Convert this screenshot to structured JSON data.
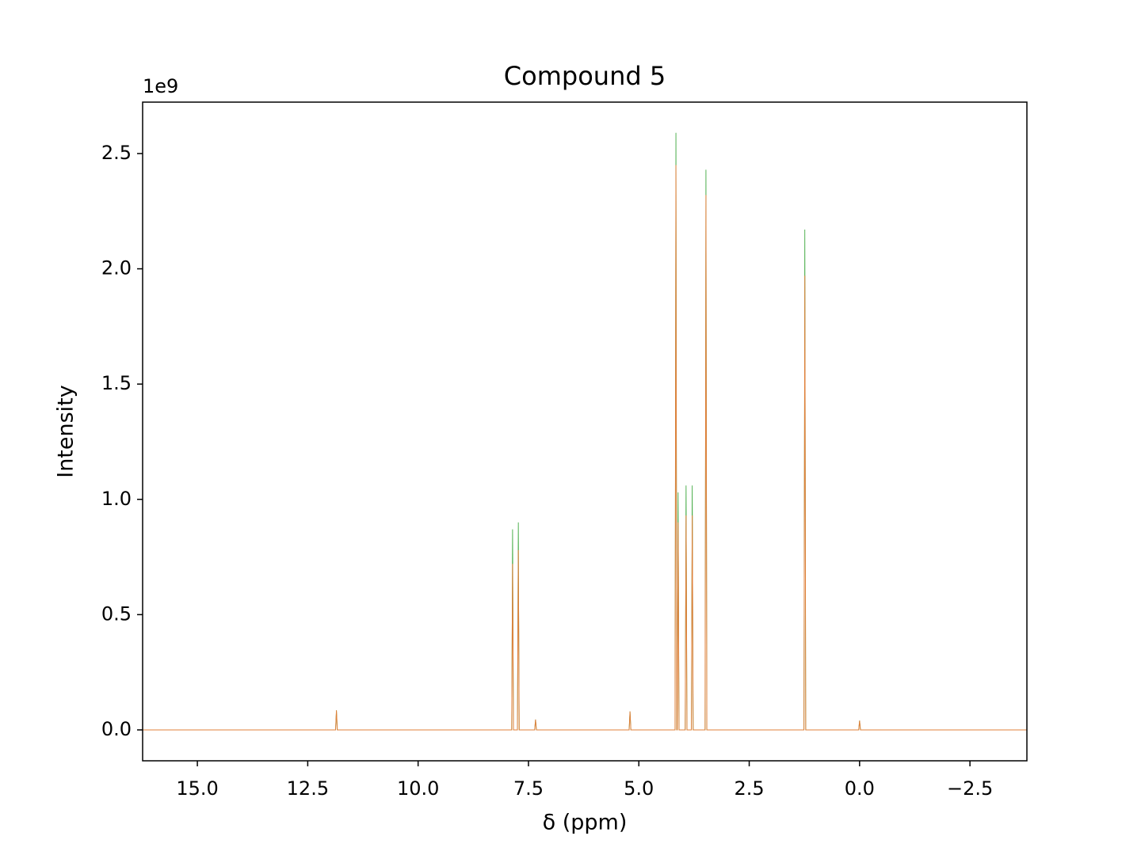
{
  "chart_data": {
    "type": "line",
    "title": "Compound 5",
    "xlabel": "δ (ppm)",
    "ylabel": "Intensity",
    "y_offset_label": "1e9",
    "x": [
      16.24,
      11.87,
      11.85,
      11.83,
      7.88,
      7.86,
      7.84,
      7.75,
      7.73,
      7.71,
      7.36,
      7.34,
      7.32,
      5.22,
      5.2,
      5.18,
      4.18,
      4.16,
      4.14,
      4.13,
      4.11,
      4.09,
      3.95,
      3.93,
      3.91,
      3.81,
      3.79,
      3.77,
      3.5,
      3.48,
      3.46,
      1.26,
      1.24,
      1.22,
      0.02,
      0.0,
      -0.02,
      -3.79
    ],
    "series": [
      {
        "color": "#2ca02c",
        "values": [
          0,
          0,
          0.085,
          0,
          0,
          0.87,
          0,
          0,
          0.9,
          0,
          0,
          0.045,
          0,
          0,
          0.08,
          0,
          0,
          2.59,
          0,
          0,
          1.03,
          0,
          0,
          1.06,
          0,
          0,
          1.06,
          0,
          0,
          2.43,
          0,
          0,
          2.17,
          0,
          0,
          0.04,
          0,
          0
        ]
      },
      {
        "color": "#e0803a",
        "values": [
          0,
          0,
          0.085,
          0,
          0,
          0.72,
          0,
          0,
          0.78,
          0,
          0,
          0.045,
          0,
          0,
          0.08,
          0,
          0,
          2.45,
          0,
          0,
          0.9,
          0,
          0,
          0.93,
          0,
          0,
          0.93,
          0,
          0,
          2.32,
          0,
          0,
          1.97,
          0,
          0,
          0.04,
          0,
          0
        ]
      }
    ],
    "xlim": [
      16.24,
      -3.79
    ],
    "ylim": [
      -0.134,
      2.723
    ],
    "xticks": [
      {
        "value": 15,
        "label": "15.0"
      },
      12.5,
      {
        "value": 10,
        "label": "10.0"
      },
      7.5,
      {
        "value": 5,
        "label": "5.0"
      },
      2.5,
      {
        "value": 0,
        "label": "0.0"
      },
      {
        "value": -2.5,
        "label": "−2.5"
      }
    ],
    "yticks": [
      {
        "value": 0,
        "label": "0.0"
      },
      0.5,
      {
        "value": 1,
        "label": "1.0"
      },
      1.5,
      {
        "value": 2,
        "label": "2.0"
      },
      2.5
    ]
  }
}
